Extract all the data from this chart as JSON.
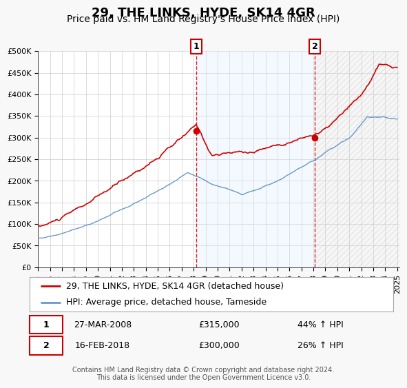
{
  "title": "29, THE LINKS, HYDE, SK14 4GR",
  "subtitle": "Price paid vs. HM Land Registry's House Price Index (HPI)",
  "ylim": [
    0,
    500000
  ],
  "yticks": [
    0,
    50000,
    100000,
    150000,
    200000,
    250000,
    300000,
    350000,
    400000,
    450000,
    500000
  ],
  "ytick_labels": [
    "£0",
    "£50K",
    "£100K",
    "£150K",
    "£200K",
    "£250K",
    "£300K",
    "£350K",
    "£400K",
    "£450K",
    "£500K"
  ],
  "xlim_start": 1995.0,
  "xlim_end": 2025.2,
  "xticks": [
    1995,
    1996,
    1997,
    1998,
    1999,
    2000,
    2001,
    2002,
    2003,
    2004,
    2005,
    2006,
    2007,
    2008,
    2009,
    2010,
    2011,
    2012,
    2013,
    2014,
    2015,
    2016,
    2017,
    2018,
    2019,
    2020,
    2021,
    2022,
    2023,
    2024,
    2025
  ],
  "sale1_x": 2008.23,
  "sale1_y": 315000,
  "sale1_label": "1",
  "sale1_date": "27-MAR-2008",
  "sale1_price": "£315,000",
  "sale1_hpi": "44% ↑ HPI",
  "sale2_x": 2018.12,
  "sale2_y": 300000,
  "sale2_label": "2",
  "sale2_date": "16-FEB-2018",
  "sale2_price": "£300,000",
  "sale2_hpi": "26% ↑ HPI",
  "red_line_color": "#cc0000",
  "blue_line_color": "#6699cc",
  "blue_fill_color": "#ddeeff",
  "background_color": "#f8f8f8",
  "plot_bg_color": "#ffffff",
  "grid_color": "#cccccc",
  "shade_start": 2008.23,
  "shade_end": 2018.12,
  "legend_line1": "29, THE LINKS, HYDE, SK14 4GR (detached house)",
  "legend_line2": "HPI: Average price, detached house, Tameside",
  "footnote": "Contains HM Land Registry data © Crown copyright and database right 2024.\nThis data is licensed under the Open Government Licence v3.0.",
  "title_fontsize": 13,
  "subtitle_fontsize": 10,
  "tick_fontsize": 8,
  "legend_fontsize": 9
}
